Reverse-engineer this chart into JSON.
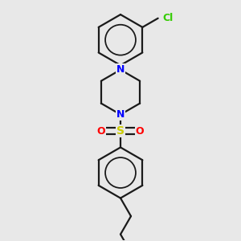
{
  "bg_color": "#e8e8e8",
  "bond_color": "#1a1a1a",
  "N_color": "#0000ff",
  "O_color": "#ff0000",
  "S_color": "#cccc00",
  "Cl_color": "#33cc00",
  "lw": 1.6,
  "figsize": [
    3.0,
    3.0
  ],
  "dpi": 100,
  "xlim": [
    -2.5,
    2.5
  ],
  "ylim": [
    -4.5,
    3.5
  ]
}
